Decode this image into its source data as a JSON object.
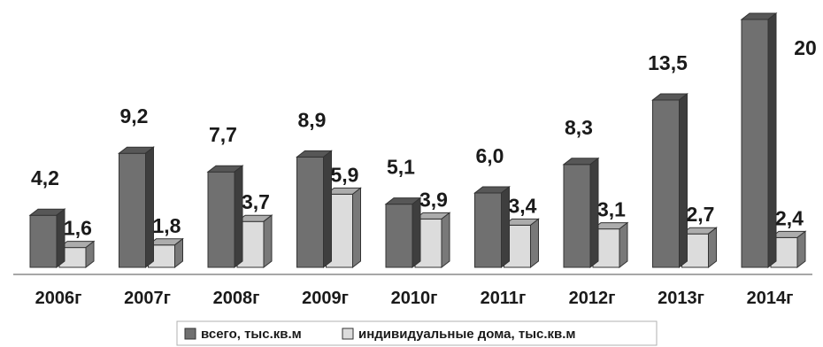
{
  "chart_data": {
    "type": "bar",
    "categories": [
      "2006г",
      "2007г",
      "2008г",
      "2009г",
      "2010г",
      "2011г",
      "2012г",
      "2013г",
      "2014г"
    ],
    "series": [
      {
        "name": "всего, тыс.кв.м",
        "values": [
          4.2,
          9.2,
          7.7,
          8.9,
          5.1,
          6.0,
          8.3,
          13.5,
          20
        ],
        "labels": [
          "4,2",
          "9,2",
          "7,7",
          "8,9",
          "5,1",
          "6,0",
          "8,3",
          "13,5",
          "20"
        ],
        "color": "#707070"
      },
      {
        "name": "индивидуальные дома, тыс.кв.м",
        "values": [
          1.6,
          1.8,
          3.7,
          5.9,
          3.9,
          3.4,
          3.1,
          2.7,
          2.4
        ],
        "labels": [
          "1,6",
          "1,8",
          "3,7",
          "5,9",
          "3,9",
          "3,4",
          "3,1",
          "2,7",
          "2,4"
        ],
        "color": "#dcdcdc"
      }
    ],
    "ylim": [
      0,
      20
    ],
    "grid": false,
    "legend_position": "bottom",
    "style": "3d-bars"
  }
}
